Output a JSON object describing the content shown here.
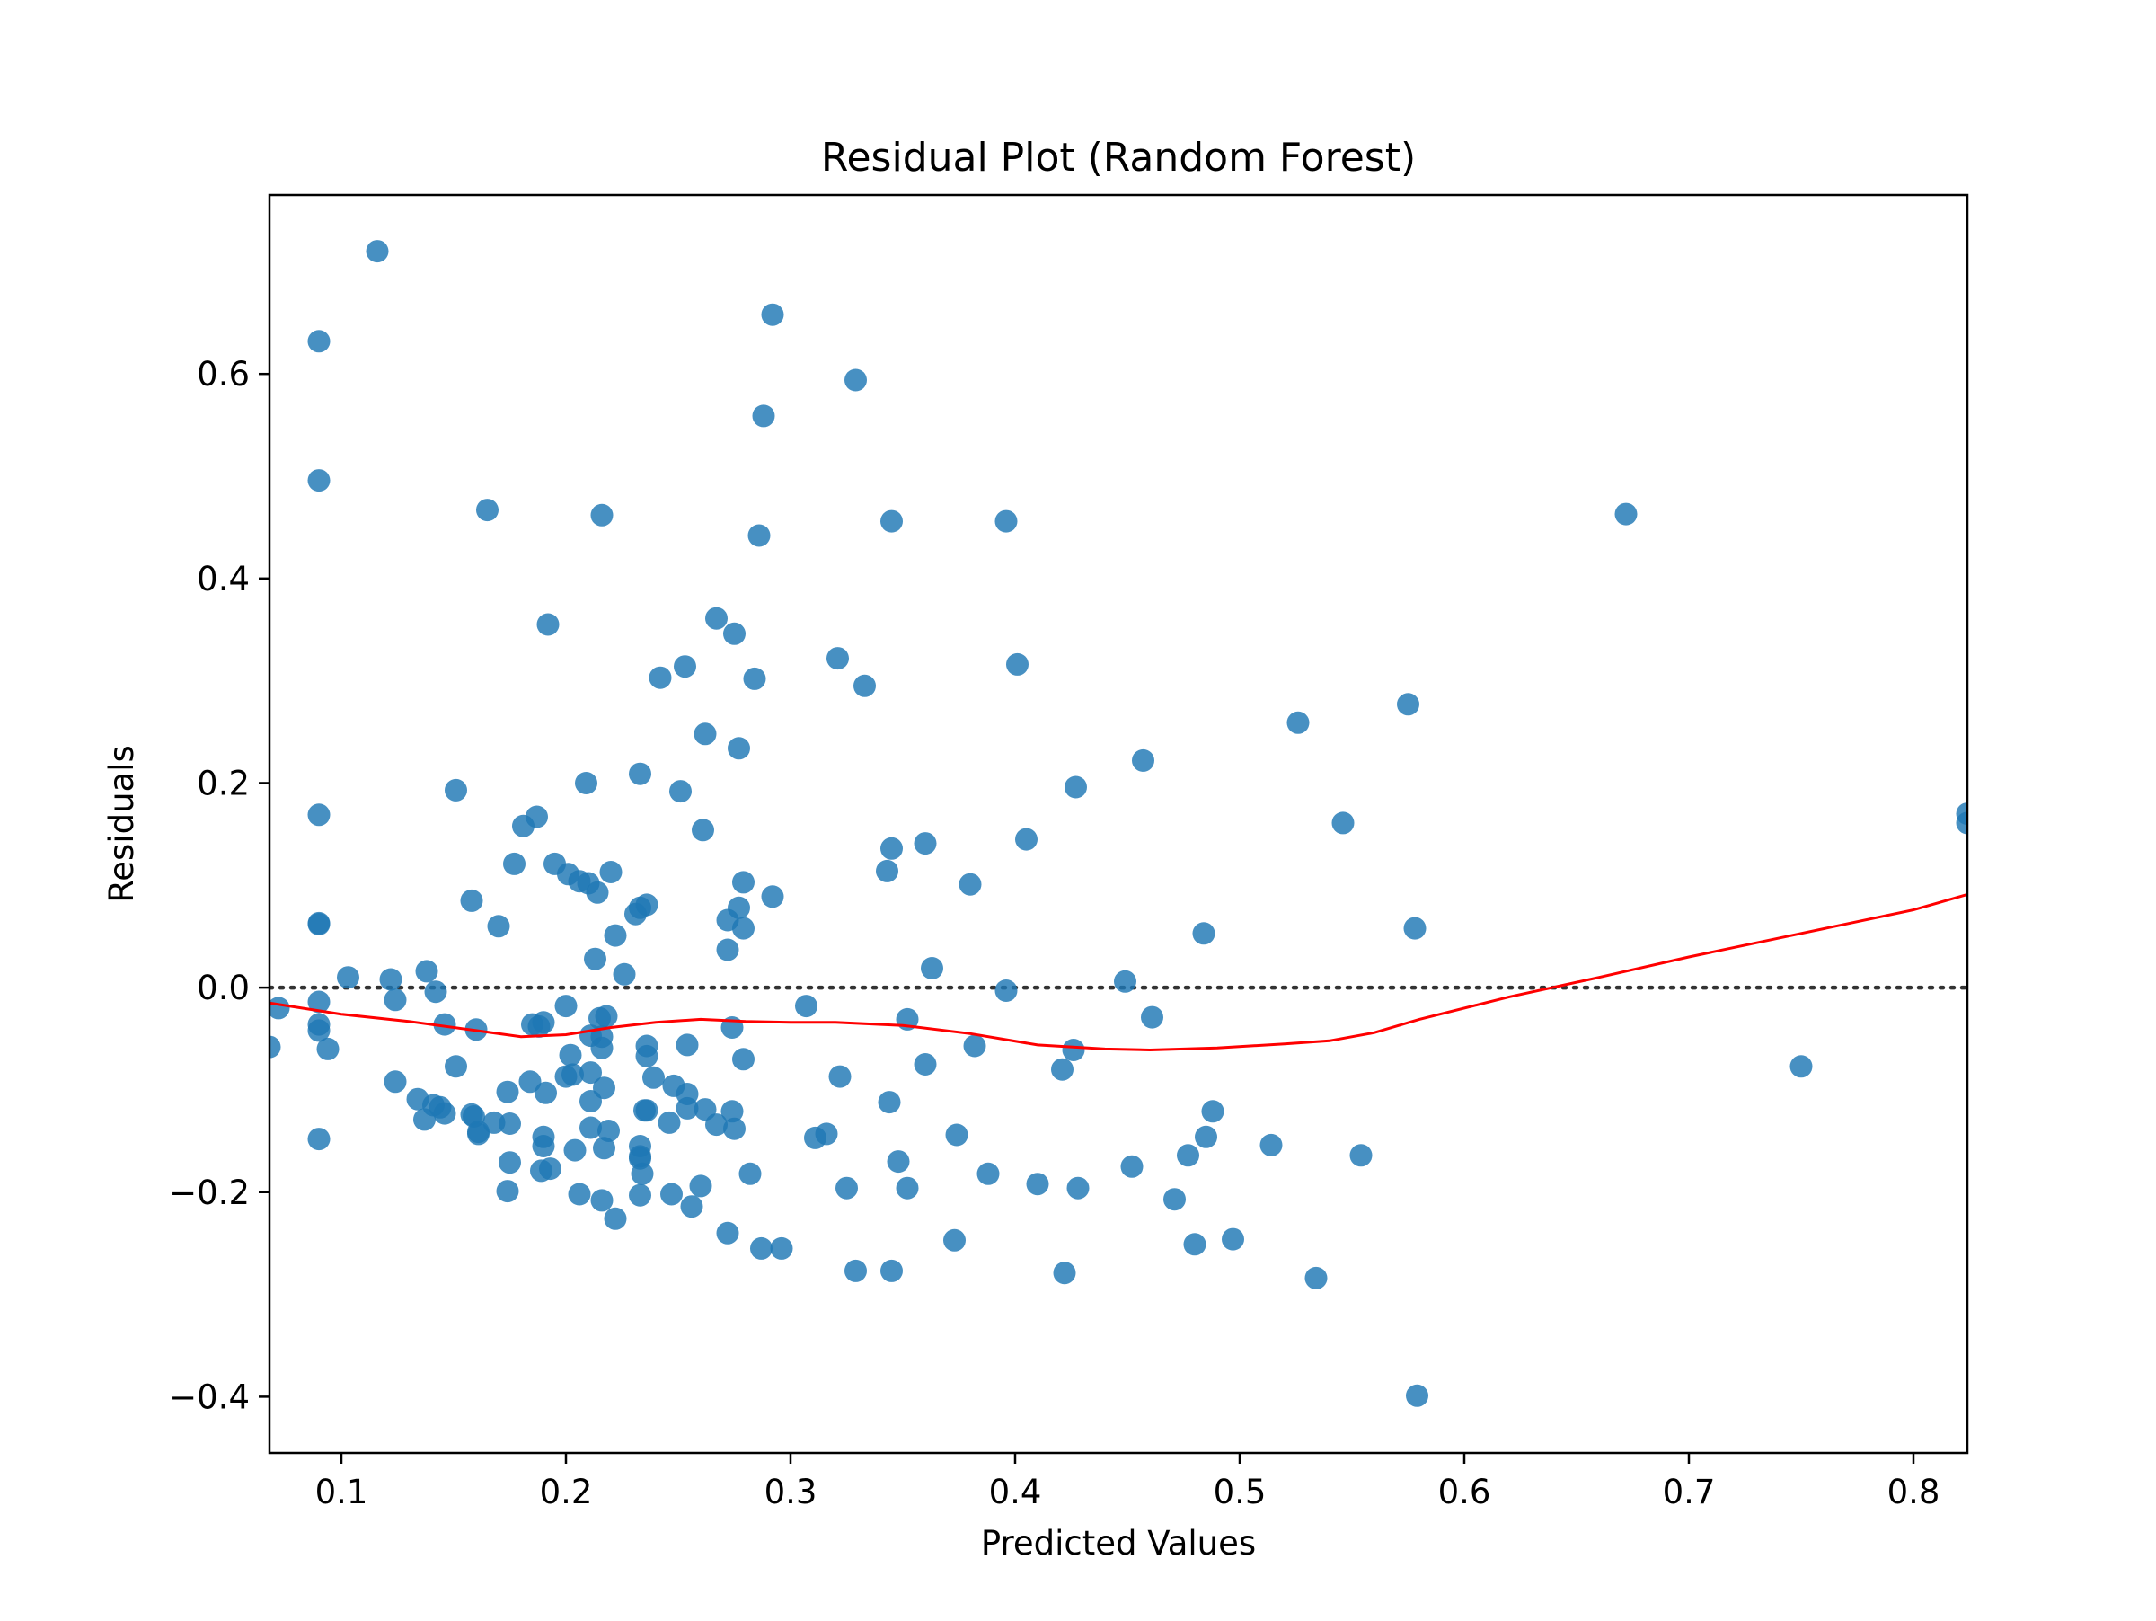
{
  "chart_data": {
    "type": "scatter",
    "title": "Residual Plot (Random Forest)",
    "xlabel": "Predicted Values",
    "ylabel": "Residuals",
    "xlim": [
      0.068,
      0.824
    ],
    "ylim": [
      -0.455,
      0.775
    ],
    "xticks": [
      0.1,
      0.2,
      0.3,
      0.4,
      0.5,
      0.6,
      0.7,
      0.8
    ],
    "xtick_labels": [
      "0.1",
      "0.2",
      "0.3",
      "0.4",
      "0.5",
      "0.6",
      "0.7",
      "0.8"
    ],
    "yticks": [
      -0.4,
      -0.2,
      0.0,
      0.2,
      0.4,
      0.6
    ],
    "ytick_labels": [
      "−0.4",
      "−0.2",
      "0.0",
      "0.2",
      "0.4",
      "0.6"
    ],
    "point_color": "#1f77b4",
    "lowess_color": "#ff0000",
    "zero_line_color": "#333333",
    "grid": false,
    "legend": "none",
    "series": [
      {
        "kind": "points",
        "points": [
          [
            0.116,
            0.72
          ],
          [
            0.09,
            0.632
          ],
          [
            0.292,
            0.658
          ],
          [
            0.329,
            0.594
          ],
          [
            0.288,
            0.559
          ],
          [
            0.09,
            0.496
          ],
          [
            0.165,
            0.467
          ],
          [
            0.216,
            0.462
          ],
          [
            0.345,
            0.456
          ],
          [
            0.396,
            0.456
          ],
          [
            0.672,
            0.463
          ],
          [
            0.286,
            0.442
          ],
          [
            0.267,
            0.361
          ],
          [
            0.192,
            0.355
          ],
          [
            0.275,
            0.346
          ],
          [
            0.321,
            0.322
          ],
          [
            0.401,
            0.316
          ],
          [
            0.253,
            0.314
          ],
          [
            0.242,
            0.303
          ],
          [
            0.284,
            0.302
          ],
          [
            0.333,
            0.295
          ],
          [
            0.575,
            0.277
          ],
          [
            0.526,
            0.259
          ],
          [
            0.262,
            0.248
          ],
          [
            0.277,
            0.234
          ],
          [
            0.457,
            0.222
          ],
          [
            0.233,
            0.209
          ],
          [
            0.209,
            0.2
          ],
          [
            0.427,
            0.196
          ],
          [
            0.151,
            0.193
          ],
          [
            0.251,
            0.192
          ],
          [
            0.09,
            0.169
          ],
          [
            0.187,
            0.167
          ],
          [
            0.824,
            0.17
          ],
          [
            0.546,
            0.161
          ],
          [
            0.824,
            0.161
          ],
          [
            0.181,
            0.158
          ],
          [
            0.261,
            0.154
          ],
          [
            0.405,
            0.145
          ],
          [
            0.36,
            0.141
          ],
          [
            0.345,
            0.136
          ],
          [
            0.195,
            0.121
          ],
          [
            0.177,
            0.121
          ],
          [
            0.22,
            0.113
          ],
          [
            0.343,
            0.114
          ],
          [
            0.201,
            0.111
          ],
          [
            0.206,
            0.104
          ],
          [
            0.21,
            0.102
          ],
          [
            0.279,
            0.103
          ],
          [
            0.38,
            0.101
          ],
          [
            0.214,
            0.093
          ],
          [
            0.292,
            0.089
          ],
          [
            0.158,
            0.085
          ],
          [
            0.236,
            0.081
          ],
          [
            0.233,
            0.078
          ],
          [
            0.277,
            0.078
          ],
          [
            0.231,
            0.072
          ],
          [
            0.272,
            0.066
          ],
          [
            0.09,
            0.063
          ],
          [
            0.09,
            0.062
          ],
          [
            0.17,
            0.06
          ],
          [
            0.279,
            0.058
          ],
          [
            0.578,
            0.058
          ],
          [
            0.484,
            0.053
          ],
          [
            0.222,
            0.051
          ],
          [
            0.272,
            0.037
          ],
          [
            0.213,
            0.028
          ],
          [
            0.363,
            0.019
          ],
          [
            0.138,
            0.016
          ],
          [
            0.226,
            0.013
          ],
          [
            0.103,
            0.01
          ],
          [
            0.122,
            0.008
          ],
          [
            0.449,
            0.006
          ],
          [
            0.142,
            -0.004
          ],
          [
            0.396,
            -0.003
          ],
          [
            0.124,
            -0.012
          ],
          [
            0.09,
            -0.014
          ],
          [
            0.072,
            -0.02
          ],
          [
            0.2,
            -0.018
          ],
          [
            0.307,
            -0.018
          ],
          [
            0.218,
            -0.028
          ],
          [
            0.215,
            -0.03
          ],
          [
            0.461,
            -0.029
          ],
          [
            0.352,
            -0.031
          ],
          [
            0.09,
            -0.036
          ],
          [
            0.146,
            -0.036
          ],
          [
            0.185,
            -0.036
          ],
          [
            0.19,
            -0.034
          ],
          [
            0.188,
            -0.038
          ],
          [
            0.16,
            -0.041
          ],
          [
            0.09,
            -0.042
          ],
          [
            0.274,
            -0.039
          ],
          [
            0.211,
            -0.047
          ],
          [
            0.216,
            -0.048
          ],
          [
            0.236,
            -0.057
          ],
          [
            0.254,
            -0.056
          ],
          [
            0.382,
            -0.057
          ],
          [
            0.068,
            -0.058
          ],
          [
            0.094,
            -0.06
          ],
          [
            0.216,
            -0.059
          ],
          [
            0.426,
            -0.061
          ],
          [
            0.202,
            -0.066
          ],
          [
            0.236,
            -0.067
          ],
          [
            0.279,
            -0.07
          ],
          [
            0.36,
            -0.075
          ],
          [
            0.151,
            -0.077
          ],
          [
            0.75,
            -0.077
          ],
          [
            0.421,
            -0.08
          ],
          [
            0.211,
            -0.083
          ],
          [
            0.2,
            -0.087
          ],
          [
            0.203,
            -0.085
          ],
          [
            0.239,
            -0.088
          ],
          [
            0.322,
            -0.087
          ],
          [
            0.124,
            -0.092
          ],
          [
            0.184,
            -0.092
          ],
          [
            0.248,
            -0.096
          ],
          [
            0.217,
            -0.098
          ],
          [
            0.174,
            -0.102
          ],
          [
            0.191,
            -0.103
          ],
          [
            0.254,
            -0.104
          ],
          [
            0.134,
            -0.109
          ],
          [
            0.211,
            -0.111
          ],
          [
            0.344,
            -0.112
          ],
          [
            0.141,
            -0.115
          ],
          [
            0.144,
            -0.117
          ],
          [
            0.235,
            -0.12
          ],
          [
            0.236,
            -0.12
          ],
          [
            0.254,
            -0.118
          ],
          [
            0.262,
            -0.119
          ],
          [
            0.274,
            -0.121
          ],
          [
            0.488,
            -0.121
          ],
          [
            0.146,
            -0.123
          ],
          [
            0.158,
            -0.124
          ],
          [
            0.159,
            -0.126
          ],
          [
            0.137,
            -0.129
          ],
          [
            0.168,
            -0.132
          ],
          [
            0.175,
            -0.133
          ],
          [
            0.246,
            -0.132
          ],
          [
            0.267,
            -0.134
          ],
          [
            0.211,
            -0.137
          ],
          [
            0.275,
            -0.138
          ],
          [
            0.219,
            -0.14
          ],
          [
            0.161,
            -0.141
          ],
          [
            0.161,
            -0.143
          ],
          [
            0.316,
            -0.143
          ],
          [
            0.311,
            -0.147
          ],
          [
            0.374,
            -0.144
          ],
          [
            0.485,
            -0.146
          ],
          [
            0.19,
            -0.146
          ],
          [
            0.09,
            -0.148
          ],
          [
            0.233,
            -0.155
          ],
          [
            0.514,
            -0.154
          ],
          [
            0.19,
            -0.155
          ],
          [
            0.217,
            -0.157
          ],
          [
            0.204,
            -0.159
          ],
          [
            0.233,
            -0.165
          ],
          [
            0.233,
            -0.167
          ],
          [
            0.554,
            -0.164
          ],
          [
            0.477,
            -0.164
          ],
          [
            0.348,
            -0.17
          ],
          [
            0.175,
            -0.171
          ],
          [
            0.452,
            -0.175
          ],
          [
            0.193,
            -0.177
          ],
          [
            0.189,
            -0.179
          ],
          [
            0.234,
            -0.182
          ],
          [
            0.282,
            -0.182
          ],
          [
            0.388,
            -0.182
          ],
          [
            0.41,
            -0.192
          ],
          [
            0.26,
            -0.194
          ],
          [
            0.325,
            -0.196
          ],
          [
            0.352,
            -0.196
          ],
          [
            0.428,
            -0.196
          ],
          [
            0.174,
            -0.199
          ],
          [
            0.206,
            -0.202
          ],
          [
            0.247,
            -0.202
          ],
          [
            0.233,
            -0.203
          ],
          [
            0.471,
            -0.207
          ],
          [
            0.216,
            -0.208
          ],
          [
            0.256,
            -0.214
          ],
          [
            0.222,
            -0.226
          ],
          [
            0.272,
            -0.24
          ],
          [
            0.373,
            -0.247
          ],
          [
            0.497,
            -0.246
          ],
          [
            0.48,
            -0.251
          ],
          [
            0.287,
            -0.255
          ],
          [
            0.296,
            -0.255
          ],
          [
            0.329,
            -0.277
          ],
          [
            0.345,
            -0.277
          ],
          [
            0.422,
            -0.279
          ],
          [
            0.534,
            -0.284
          ],
          [
            0.579,
            -0.399
          ]
        ]
      },
      {
        "kind": "lowess",
        "points": [
          [
            0.068,
            -0.015
          ],
          [
            0.1,
            -0.026
          ],
          [
            0.13,
            -0.033
          ],
          [
            0.16,
            -0.042
          ],
          [
            0.18,
            -0.048
          ],
          [
            0.2,
            -0.046
          ],
          [
            0.22,
            -0.039
          ],
          [
            0.24,
            -0.034
          ],
          [
            0.26,
            -0.031
          ],
          [
            0.28,
            -0.033
          ],
          [
            0.3,
            -0.034
          ],
          [
            0.32,
            -0.034
          ],
          [
            0.35,
            -0.037
          ],
          [
            0.38,
            -0.045
          ],
          [
            0.41,
            -0.056
          ],
          [
            0.44,
            -0.06
          ],
          [
            0.46,
            -0.061
          ],
          [
            0.49,
            -0.059
          ],
          [
            0.52,
            -0.055
          ],
          [
            0.54,
            -0.052
          ],
          [
            0.56,
            -0.044
          ],
          [
            0.58,
            -0.031
          ],
          [
            0.62,
            -0.009
          ],
          [
            0.66,
            0.01
          ],
          [
            0.7,
            0.03
          ],
          [
            0.75,
            0.053
          ],
          [
            0.8,
            0.076
          ],
          [
            0.824,
            0.091
          ]
        ]
      }
    ]
  }
}
